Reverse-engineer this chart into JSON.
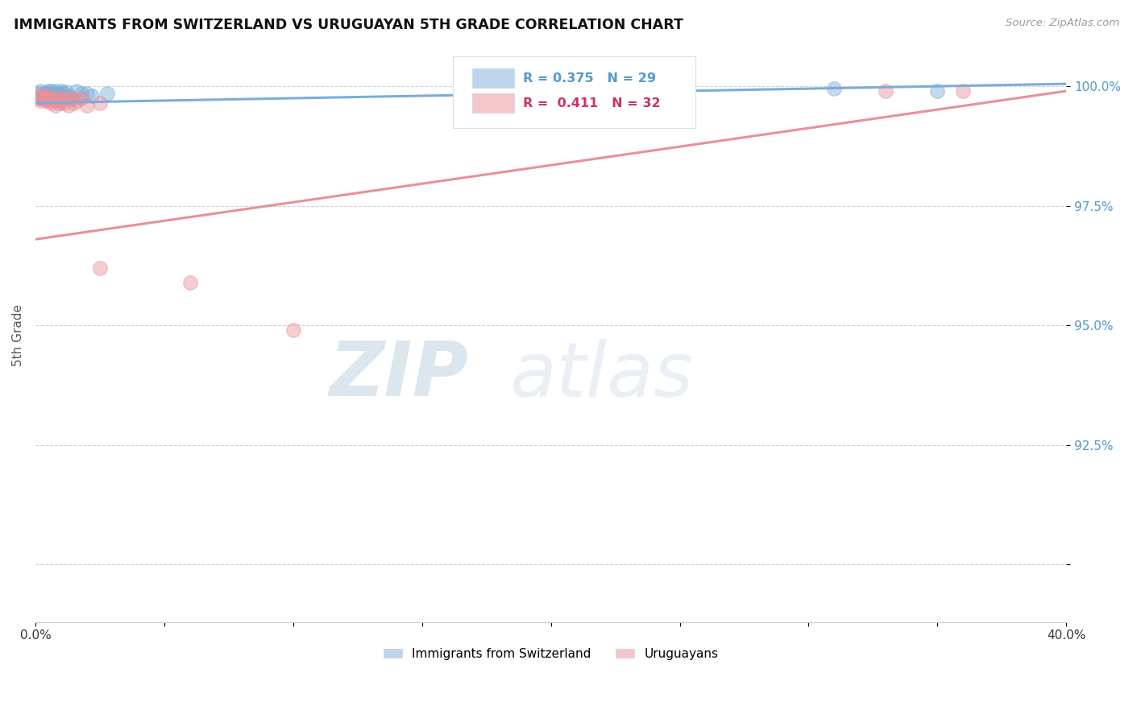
{
  "title": "IMMIGRANTS FROM SWITZERLAND VS URUGUAYAN 5TH GRADE CORRELATION CHART",
  "source": "Source: ZipAtlas.com",
  "ylabel": "5th Grade",
  "x_min": 0.0,
  "x_max": 0.4,
  "y_min": 0.888,
  "y_max": 1.008,
  "x_ticks": [
    0.0,
    0.05,
    0.1,
    0.15,
    0.2,
    0.25,
    0.3,
    0.35,
    0.4
  ],
  "x_tick_labels": [
    "0.0%",
    "",
    "",
    "",
    "",
    "",
    "",
    "",
    "40.0%"
  ],
  "y_ticks": [
    0.9,
    0.925,
    0.95,
    0.975,
    1.0
  ],
  "y_tick_labels": [
    "",
    "92.5%",
    "95.0%",
    "97.5%",
    "100.0%"
  ],
  "legend_label1": "Immigrants from Switzerland",
  "legend_label2": "Uruguayans",
  "watermark_zip": "ZIP",
  "watermark_atlas": "atlas",
  "blue_color": "#7aaddb",
  "pink_color": "#e8909a",
  "blue_R": 0.375,
  "blue_N": 29,
  "pink_R": 0.411,
  "pink_N": 32,
  "blue_scatter_x": [
    0.001,
    0.002,
    0.002,
    0.003,
    0.003,
    0.004,
    0.004,
    0.005,
    0.005,
    0.006,
    0.006,
    0.007,
    0.008,
    0.008,
    0.009,
    0.01,
    0.01,
    0.011,
    0.012,
    0.012,
    0.013,
    0.014,
    0.016,
    0.018,
    0.02,
    0.022,
    0.028,
    0.31,
    0.35
  ],
  "blue_scatter_y": [
    0.9985,
    0.9975,
    0.999,
    0.9985,
    0.9975,
    0.9985,
    0.9975,
    0.999,
    0.9985,
    0.998,
    0.999,
    0.9985,
    0.999,
    0.9975,
    0.9985,
    0.998,
    0.999,
    0.9985,
    0.9988,
    0.9975,
    0.998,
    0.9975,
    0.999,
    0.9985,
    0.9985,
    0.998,
    0.9985,
    0.9995,
    0.999
  ],
  "pink_scatter_x": [
    0.001,
    0.002,
    0.002,
    0.003,
    0.003,
    0.004,
    0.004,
    0.005,
    0.005,
    0.006,
    0.006,
    0.007,
    0.008,
    0.008,
    0.009,
    0.009,
    0.01,
    0.01,
    0.011,
    0.012,
    0.013,
    0.014,
    0.015,
    0.016,
    0.018,
    0.02,
    0.025,
    0.025,
    0.06,
    0.1,
    0.33,
    0.36
  ],
  "pink_scatter_y": [
    0.9975,
    0.998,
    0.997,
    0.998,
    0.9975,
    0.997,
    0.9975,
    0.998,
    0.997,
    0.9975,
    0.9965,
    0.9975,
    0.997,
    0.996,
    0.9975,
    0.9965,
    0.997,
    0.9975,
    0.9965,
    0.9975,
    0.996,
    0.9975,
    0.9965,
    0.997,
    0.9975,
    0.996,
    0.9965,
    0.962,
    0.959,
    0.949,
    0.999,
    0.999
  ],
  "blue_line_x0": 0.0,
  "blue_line_y0": 0.9965,
  "blue_line_x1": 0.4,
  "blue_line_y1": 1.0005,
  "pink_line_x0": 0.0,
  "pink_line_y0": 0.968,
  "pink_line_x1": 0.4,
  "pink_line_y1": 0.999
}
